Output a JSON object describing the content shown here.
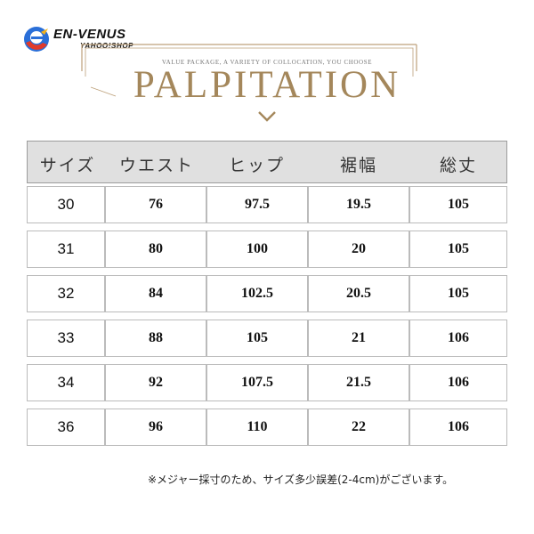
{
  "logo": {
    "title": "EN-VENUS",
    "subtitle": "YAHOO!SHOP"
  },
  "banner": {
    "tagline": "VALUE PACKAGE, A VARIETY OF COLLOCATION, YOU CHOOSE",
    "title": "PALPITATION",
    "accent_color": "#a4875b"
  },
  "table": {
    "headers": [
      "サイズ",
      "ウエスト",
      "ヒップ",
      "裾幅",
      "総丈"
    ],
    "rows": [
      [
        "30",
        "76",
        "97.5",
        "19.5",
        "105"
      ],
      [
        "31",
        "80",
        "100",
        "20",
        "105"
      ],
      [
        "32",
        "84",
        "102.5",
        "20.5",
        "105"
      ],
      [
        "33",
        "88",
        "105",
        "21",
        "106"
      ],
      [
        "34",
        "92",
        "107.5",
        "21.5",
        "106"
      ],
      [
        "36",
        "96",
        "110",
        "22",
        "106"
      ]
    ]
  },
  "note": "※メジャー採寸のため、サイズ多少誤差(2-4cm)がございます。"
}
